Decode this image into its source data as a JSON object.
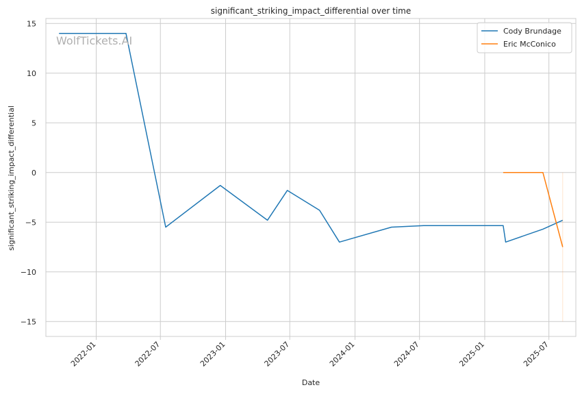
{
  "chart_data": {
    "type": "line",
    "title": "significant_striking_impact_differential over time",
    "xlabel": "Date",
    "ylabel": "significant_striking_impact_differential",
    "watermark": "WolfTickets.AI",
    "x_ticks": [
      "2022-01",
      "2022-07",
      "2023-01",
      "2023-07",
      "2024-01",
      "2024-07",
      "2025-01",
      "2025-07"
    ],
    "y_ticks": [
      "−15",
      "−10",
      "−5",
      "0",
      "5",
      "10",
      "15"
    ],
    "y_tick_values": [
      -15,
      -10,
      -5,
      0,
      5,
      10,
      15
    ],
    "xlim": [
      "2021-08-12",
      "2025-09-15"
    ],
    "ylim": [
      -16.5,
      15.5
    ],
    "grid": true,
    "legend_position": "top-right",
    "series": [
      {
        "name": "Cody Brundage",
        "color": "#1f77b4",
        "points": [
          {
            "x": "2021-09-18",
            "y": 14.0
          },
          {
            "x": "2022-03-26",
            "y": 14.0
          },
          {
            "x": "2022-07-16",
            "y": -5.5
          },
          {
            "x": "2022-12-17",
            "y": -1.3
          },
          {
            "x": "2023-04-29",
            "y": -4.8
          },
          {
            "x": "2023-06-24",
            "y": -1.8
          },
          {
            "x": "2023-09-23",
            "y": -3.8
          },
          {
            "x": "2023-11-18",
            "y": -7.0
          },
          {
            "x": "2024-04-13",
            "y": -5.5
          },
          {
            "x": "2024-07-13",
            "y": -5.35
          },
          {
            "x": "2025-02-22",
            "y": -5.35
          },
          {
            "x": "2025-03-01",
            "y": -7.0
          },
          {
            "x": "2025-06-14",
            "y": -5.7
          },
          {
            "x": "2025-08-09",
            "y": -4.8
          }
        ]
      },
      {
        "name": "Eric McConico",
        "color": "#ff7f0e",
        "points": [
          {
            "x": "2025-02-22",
            "y": 0.0
          },
          {
            "x": "2025-06-14",
            "y": 0.0
          },
          {
            "x": "2025-08-09",
            "y": -7.5
          }
        ]
      }
    ]
  }
}
